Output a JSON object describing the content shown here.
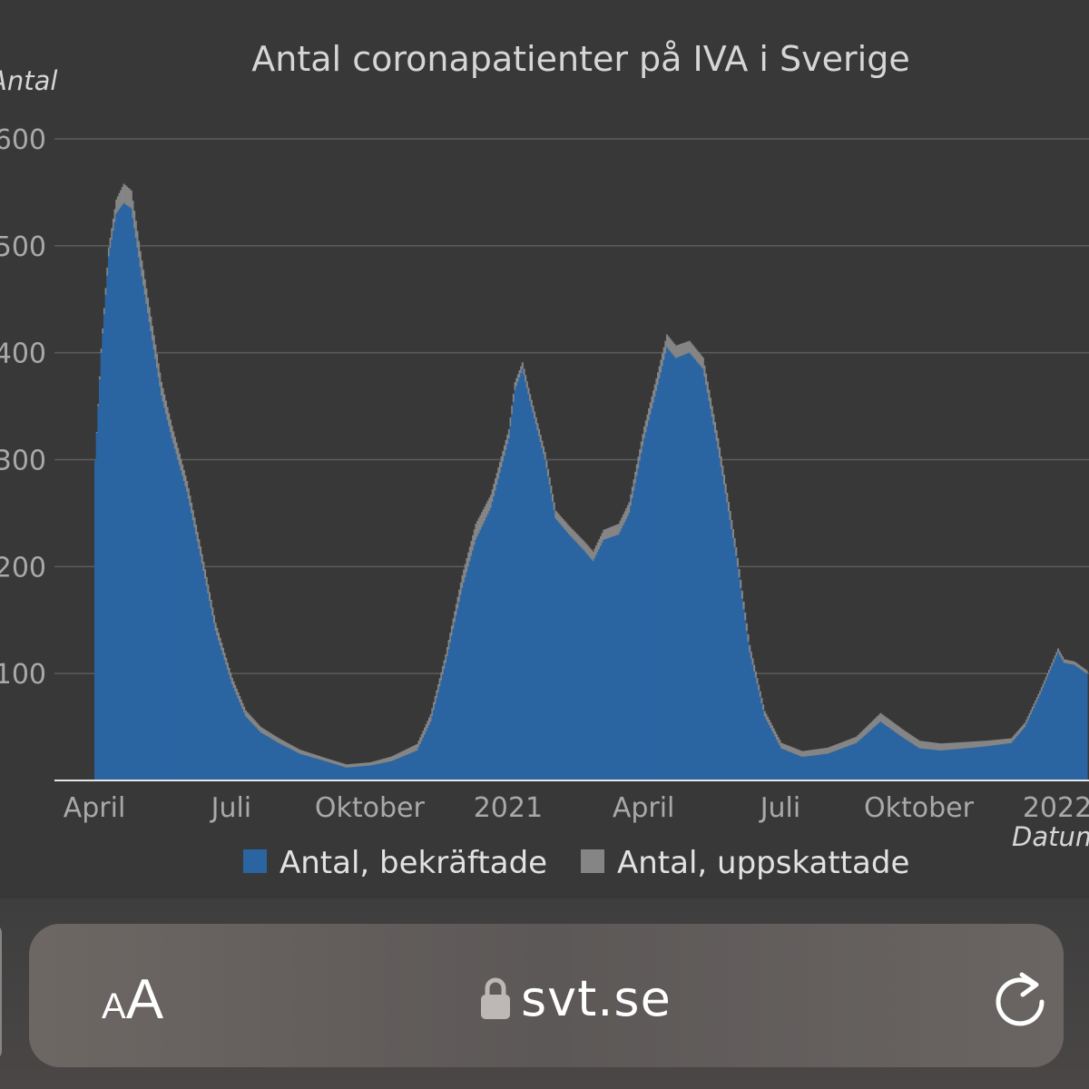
{
  "colors": {
    "background": "#383838",
    "confirmed": "#2a65a2",
    "estimated": "#858585",
    "gridline": "#5c5c5c",
    "baseline": "#e6e6e6"
  },
  "chart_data": {
    "type": "bar",
    "title": "Antal coronapatienter på IVA i  Sverige",
    "ylabel": "Antal",
    "xlabel": "Datum",
    "ylim": [
      0,
      600
    ],
    "yticks": [
      100,
      200,
      300,
      400,
      500,
      600
    ],
    "ytick_labels": [
      "100",
      "200",
      "300",
      "400",
      "500",
      "600"
    ],
    "xticks": [
      {
        "label": "April",
        "date": "2020-04-01"
      },
      {
        "label": "Juli",
        "date": "2020-07-01"
      },
      {
        "label": "Oktober",
        "date": "2020-10-01"
      },
      {
        "label": "2021",
        "date": "2021-01-01"
      },
      {
        "label": "April",
        "date": "2021-04-01"
      },
      {
        "label": "Juli",
        "date": "2021-07-01"
      },
      {
        "label": "Oktober",
        "date": "2021-10-01"
      },
      {
        "label": "2022",
        "date": "2022-01-01"
      }
    ],
    "x_range": [
      "2020-04-01",
      "2022-01-20"
    ],
    "grid": true,
    "legend_position": "bottom",
    "series": [
      {
        "name": "Antal, bekräftade",
        "color": "#2a65a2",
        "points": [
          [
            "2020-04-01",
            300
          ],
          [
            "2020-04-05",
            400
          ],
          [
            "2020-04-10",
            490
          ],
          [
            "2020-04-15",
            530
          ],
          [
            "2020-04-20",
            540
          ],
          [
            "2020-04-25",
            535
          ],
          [
            "2020-05-01",
            480
          ],
          [
            "2020-05-08",
            420
          ],
          [
            "2020-05-15",
            360
          ],
          [
            "2020-05-22",
            320
          ],
          [
            "2020-06-01",
            270
          ],
          [
            "2020-06-10",
            210
          ],
          [
            "2020-06-20",
            140
          ],
          [
            "2020-07-01",
            90
          ],
          [
            "2020-07-10",
            60
          ],
          [
            "2020-07-20",
            45
          ],
          [
            "2020-08-01",
            35
          ],
          [
            "2020-08-15",
            25
          ],
          [
            "2020-09-01",
            18
          ],
          [
            "2020-09-15",
            12
          ],
          [
            "2020-10-01",
            14
          ],
          [
            "2020-10-15",
            18
          ],
          [
            "2020-11-01",
            28
          ],
          [
            "2020-11-10",
            55
          ],
          [
            "2020-11-20",
            110
          ],
          [
            "2020-12-01",
            180
          ],
          [
            "2020-12-10",
            225
          ],
          [
            "2020-12-20",
            255
          ],
          [
            "2021-01-01",
            320
          ],
          [
            "2021-01-05",
            365
          ],
          [
            "2021-01-10",
            385
          ],
          [
            "2021-01-15",
            355
          ],
          [
            "2021-01-25",
            300
          ],
          [
            "2021-02-01",
            245
          ],
          [
            "2021-02-10",
            230
          ],
          [
            "2021-02-20",
            215
          ],
          [
            "2021-02-26",
            205
          ],
          [
            "2021-03-05",
            225
          ],
          [
            "2021-03-15",
            230
          ],
          [
            "2021-03-22",
            250
          ],
          [
            "2021-04-01",
            320
          ],
          [
            "2021-04-10",
            370
          ],
          [
            "2021-04-16",
            405
          ],
          [
            "2021-04-22",
            395
          ],
          [
            "2021-05-01",
            400
          ],
          [
            "2021-05-10",
            385
          ],
          [
            "2021-05-20",
            310
          ],
          [
            "2021-06-01",
            210
          ],
          [
            "2021-06-10",
            120
          ],
          [
            "2021-06-20",
            60
          ],
          [
            "2021-07-01",
            30
          ],
          [
            "2021-07-15",
            22
          ],
          [
            "2021-08-01",
            25
          ],
          [
            "2021-08-20",
            35
          ],
          [
            "2021-09-05",
            55
          ],
          [
            "2021-09-20",
            40
          ],
          [
            "2021-10-01",
            30
          ],
          [
            "2021-10-15",
            28
          ],
          [
            "2021-11-01",
            30
          ],
          [
            "2021-11-15",
            32
          ],
          [
            "2021-12-01",
            35
          ],
          [
            "2021-12-10",
            50
          ],
          [
            "2021-12-20",
            80
          ],
          [
            "2022-01-01",
            120
          ],
          [
            "2022-01-05",
            110
          ],
          [
            "2022-01-12",
            108
          ],
          [
            "2022-01-20",
            100
          ]
        ]
      },
      {
        "name": "Antal, uppskattade",
        "color": "#858585",
        "points": [
          [
            "2020-04-01",
            0
          ],
          [
            "2020-04-20",
            18
          ],
          [
            "2020-05-01",
            15
          ],
          [
            "2020-06-01",
            10
          ],
          [
            "2020-07-01",
            6
          ],
          [
            "2020-09-01",
            3
          ],
          [
            "2020-10-01",
            3
          ],
          [
            "2020-11-20",
            8
          ],
          [
            "2020-12-10",
            15
          ],
          [
            "2021-01-10",
            6
          ],
          [
            "2021-02-10",
            8
          ],
          [
            "2021-03-15",
            10
          ],
          [
            "2021-04-16",
            12
          ],
          [
            "2021-05-20",
            10
          ],
          [
            "2021-06-20",
            5
          ],
          [
            "2021-08-20",
            6
          ],
          [
            "2021-09-05",
            8
          ],
          [
            "2021-11-01",
            6
          ],
          [
            "2021-12-10",
            4
          ],
          [
            "2022-01-20",
            3
          ]
        ]
      }
    ]
  },
  "browser": {
    "text_size_small": "A",
    "text_size_large": "A",
    "url": "svt.se"
  }
}
